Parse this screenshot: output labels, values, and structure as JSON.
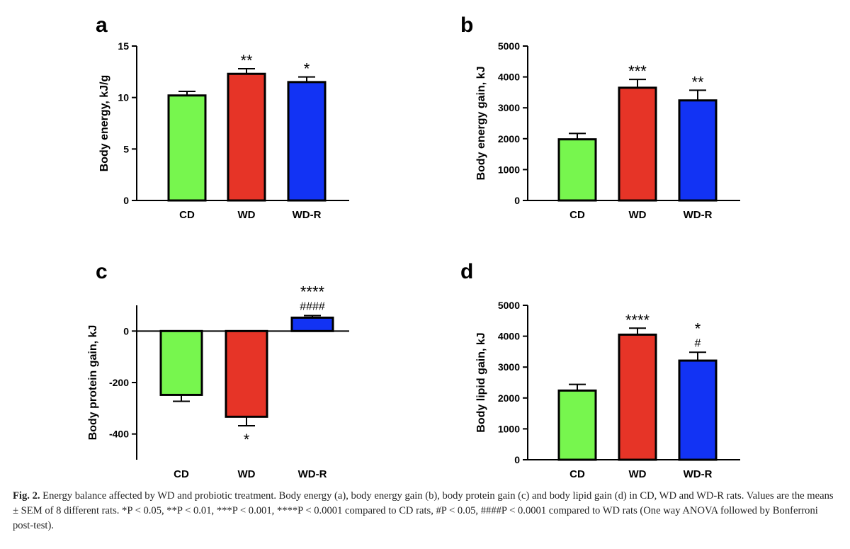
{
  "colors": {
    "CD": "#77f64e",
    "WD": "#e63427",
    "WD-R": "#1233f4",
    "axis": "#000000"
  },
  "caption": {
    "label": "Fig. 2.",
    "text": "Energy balance affected by WD and probiotic treatment. Body energy (a), body energy gain (b), body protein gain (c) and body lipid gain (d) in CD, WD and WD-R rats. Values are the means ± SEM of 8 different rats. *P < 0.05, **P < 0.01, ***P < 0.001, ****P < 0.0001 compared to CD rats, #P < 0.05, ####P < 0.0001 compared to WD rats (One way ANOVA followed by Bonferroni post-test)."
  },
  "chart_data": [
    {
      "panel": "a",
      "type": "bar",
      "categories": [
        "CD",
        "WD",
        "WD-R"
      ],
      "values": [
        10.2,
        12.3,
        11.5
      ],
      "errors": [
        0.4,
        0.5,
        0.5
      ],
      "annotations": [
        [
          "",
          ""
        ],
        [
          "**",
          ""
        ],
        [
          "*",
          ""
        ]
      ],
      "ylabel": "Body energy, kJ/g",
      "ylim": [
        0,
        15
      ],
      "yticks": [
        0,
        5,
        10,
        15
      ]
    },
    {
      "panel": "b",
      "type": "bar",
      "categories": [
        "CD",
        "WD",
        "WD-R"
      ],
      "values": [
        1980,
        3650,
        3240
      ],
      "errors": [
        190,
        270,
        330
      ],
      "annotations": [
        [
          "",
          ""
        ],
        [
          "***",
          ""
        ],
        [
          "**",
          ""
        ]
      ],
      "ylabel": "Body energy gain, kJ",
      "ylim": [
        0,
        5000
      ],
      "yticks": [
        0,
        1000,
        2000,
        3000,
        4000,
        5000
      ]
    },
    {
      "panel": "c",
      "type": "bar",
      "categories": [
        "CD",
        "WD",
        "WD-R"
      ],
      "values": [
        -248,
        -333,
        52
      ],
      "errors": [
        25,
        35,
        8
      ],
      "annotations": [
        [
          "",
          ""
        ],
        [
          "*",
          ""
        ],
        [
          "****",
          "####"
        ]
      ],
      "ylabel": "Body protein gain, kJ",
      "ylim": [
        -500,
        100
      ],
      "yticks": [
        -400,
        -200,
        0
      ]
    },
    {
      "panel": "d",
      "type": "bar",
      "categories": [
        "CD",
        "WD",
        "WD-R"
      ],
      "values": [
        2240,
        4050,
        3210
      ],
      "errors": [
        200,
        210,
        270
      ],
      "annotations": [
        [
          "",
          ""
        ],
        [
          "****",
          ""
        ],
        [
          "*",
          "#"
        ]
      ],
      "ylabel": "Body lipid gain, kJ",
      "ylim": [
        0,
        5000
      ],
      "yticks": [
        0,
        1000,
        2000,
        3000,
        4000,
        5000
      ]
    }
  ]
}
